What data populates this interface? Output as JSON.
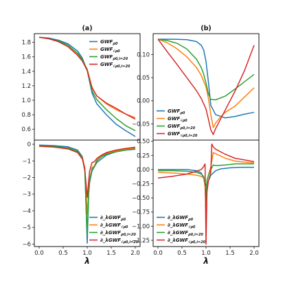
{
  "colors": {
    "blue": "#1f77b4",
    "orange": "#ff7f0e",
    "green": "#2ca02c",
    "red": "#d62728"
  },
  "chart_data": [
    {
      "type": "line",
      "panel": "top-left",
      "title": "(a)",
      "xlim": [
        -0.1,
        2.1
      ],
      "ylim": [
        0.45,
        1.92
      ],
      "yticks": [
        "0.6",
        "0.8",
        "1.0",
        "1.2",
        "1.4",
        "1.6",
        "1.8"
      ],
      "ytick_values": [
        0.6,
        0.8,
        1.0,
        1.2,
        1.4,
        1.6,
        1.8
      ],
      "legend": "top-right",
      "series": [
        {
          "name": "GWF_{ρ_0}",
          "color": "blue",
          "x": [
            0,
            0.2,
            0.4,
            0.6,
            0.8,
            0.9,
            1.0,
            1.1,
            1.2,
            1.4,
            1.6,
            1.8,
            2.0
          ],
          "y": [
            1.87,
            1.86,
            1.83,
            1.78,
            1.68,
            1.58,
            1.41,
            1.1,
            0.95,
            0.8,
            0.67,
            0.58,
            0.5
          ]
        },
        {
          "name": "GWF_{√ρ_0}",
          "color": "orange",
          "x": [
            0,
            0.2,
            0.4,
            0.6,
            0.8,
            0.9,
            1.0,
            1.1,
            1.2,
            1.4,
            1.6,
            1.8,
            2.0
          ],
          "y": [
            1.87,
            1.85,
            1.81,
            1.74,
            1.63,
            1.55,
            1.43,
            1.18,
            1.06,
            0.95,
            0.87,
            0.81,
            0.76
          ]
        },
        {
          "name": "GWF_{ρ_{0,i=20}}",
          "color": "green",
          "x": [
            0,
            0.2,
            0.4,
            0.6,
            0.8,
            0.9,
            1.0,
            1.1,
            1.2,
            1.4,
            1.6,
            1.8,
            2.0
          ],
          "y": [
            1.87,
            1.85,
            1.82,
            1.76,
            1.65,
            1.56,
            1.42,
            1.13,
            1.01,
            0.87,
            0.75,
            0.65,
            0.58
          ]
        },
        {
          "name": "GWF_{√ρ_{0,i=20}}",
          "color": "red",
          "x": [
            0,
            0.2,
            0.4,
            0.6,
            0.8,
            0.9,
            1.0,
            1.1,
            1.2,
            1.4,
            1.6,
            1.8,
            2.0
          ],
          "y": [
            1.87,
            1.85,
            1.81,
            1.74,
            1.62,
            1.54,
            1.41,
            1.17,
            1.06,
            0.96,
            0.89,
            0.81,
            0.74
          ]
        }
      ]
    },
    {
      "type": "line",
      "panel": "top-right",
      "title": "(b)",
      "xlim": [
        -0.1,
        2.1
      ],
      "ylim": [
        -0.085,
        0.145
      ],
      "yticks": [
        "−0.05",
        "0.00",
        "0.05",
        "0.10"
      ],
      "ytick_values": [
        -0.05,
        0.0,
        0.05,
        0.1
      ],
      "legend": "bottom-left",
      "series": [
        {
          "name": "GWF_{ρ_0}",
          "color": "blue",
          "x": [
            0,
            0.3,
            0.6,
            0.8,
            0.9,
            0.95,
            1.0,
            1.05,
            1.1,
            1.2,
            1.4,
            1.6,
            1.8,
            2.0
          ],
          "y": [
            0.133,
            0.133,
            0.132,
            0.128,
            0.12,
            0.11,
            0.085,
            0.04,
            -0.01,
            -0.03,
            -0.037,
            -0.034,
            -0.029,
            -0.025
          ]
        },
        {
          "name": "GWF_{√ρ_0}",
          "color": "orange",
          "x": [
            0,
            0.2,
            0.4,
            0.6,
            0.8,
            0.9,
            1.0,
            1.05,
            1.1,
            1.15,
            1.2,
            1.3,
            1.4,
            1.6,
            1.8,
            2.0
          ],
          "y": [
            0.133,
            0.125,
            0.112,
            0.095,
            0.072,
            0.055,
            0.03,
            0.005,
            -0.03,
            -0.058,
            -0.048,
            -0.035,
            -0.025,
            -0.012,
            0.008,
            0.028
          ]
        },
        {
          "name": "GWF_{ρ_{0,i=20}}",
          "color": "green",
          "x": [
            0,
            0.2,
            0.4,
            0.6,
            0.8,
            0.9,
            0.95,
            1.0,
            1.05,
            1.1,
            1.2,
            1.4,
            1.6,
            1.8,
            2.0
          ],
          "y": [
            0.133,
            0.13,
            0.124,
            0.112,
            0.09,
            0.072,
            0.058,
            0.038,
            0.015,
            0.003,
            0.002,
            0.01,
            0.025,
            0.041,
            0.057
          ]
        },
        {
          "name": "GWF_{√ρ_{0,i=20}}",
          "color": "red",
          "x": [
            0,
            0.2,
            0.4,
            0.6,
            0.8,
            0.9,
            1.0,
            1.05,
            1.1,
            1.15,
            1.2,
            1.4,
            1.6,
            1.8,
            2.0
          ],
          "y": [
            0.133,
            0.105,
            0.078,
            0.05,
            0.022,
            0.005,
            -0.018,
            -0.04,
            -0.063,
            -0.073,
            -0.06,
            -0.02,
            0.02,
            0.065,
            0.12
          ]
        }
      ]
    },
    {
      "type": "line",
      "panel": "bottom-left",
      "xlabel": "λ",
      "xlim": [
        -0.1,
        2.1
      ],
      "ylim": [
        -6.15,
        0.25
      ],
      "xticks": [
        "0.0",
        "0.5",
        "1.0",
        "1.5",
        "2.0"
      ],
      "xtick_values": [
        0,
        0.5,
        1.0,
        1.5,
        2.0
      ],
      "yticks": [
        "−6",
        "−5",
        "−4",
        "−3",
        "−2",
        "−1",
        "0"
      ],
      "ytick_values": [
        -6,
        -5,
        -4,
        -3,
        -2,
        -1,
        0
      ],
      "legend": "bottom-right",
      "series": [
        {
          "name": "∂_λGWF_{ρ_0}",
          "color": "blue",
          "x": [
            0,
            0.3,
            0.6,
            0.8,
            0.9,
            0.95,
            1.0,
            1.03,
            1.05,
            1.1,
            1.2,
            1.4,
            1.6,
            1.8,
            2.0
          ],
          "y": [
            -0.05,
            -0.08,
            -0.15,
            -0.35,
            -0.75,
            -1.5,
            -5.95,
            -3.0,
            -2.3,
            -1.6,
            -1.1,
            -0.65,
            -0.45,
            -0.35,
            -0.3
          ]
        },
        {
          "name": "∂_λGWF_{√ρ_0}",
          "color": "orange",
          "x": [
            0,
            0.3,
            0.6,
            0.8,
            0.9,
            0.95,
            1.0,
            1.03,
            1.05,
            1.1,
            1.15,
            1.2,
            1.3,
            1.4,
            1.6,
            1.8,
            2.0
          ],
          "y": [
            -0.1,
            -0.15,
            -0.25,
            -0.45,
            -0.8,
            -1.4,
            -4.2,
            -2.8,
            -2.1,
            -1.4,
            -1.3,
            -0.95,
            -0.7,
            -0.55,
            -0.4,
            -0.3,
            -0.22
          ]
        },
        {
          "name": "∂_λGWF_{ρ_{0,i=20}}",
          "color": "green",
          "x": [
            0,
            0.3,
            0.6,
            0.8,
            0.9,
            0.95,
            1.0,
            1.03,
            1.05,
            1.1,
            1.15,
            1.2,
            1.3,
            1.4,
            1.6,
            1.8,
            2.0
          ],
          "y": [
            -0.08,
            -0.12,
            -0.22,
            -0.42,
            -0.85,
            -1.6,
            -5.5,
            -3.0,
            -2.2,
            -1.5,
            -1.35,
            -1.0,
            -0.75,
            -0.6,
            -0.45,
            -0.35,
            -0.28
          ]
        },
        {
          "name": "∂_λGWF_{√ρ_{0,i=20}}",
          "color": "red",
          "x": [
            0,
            0.3,
            0.6,
            0.8,
            0.9,
            0.95,
            1.0,
            1.03,
            1.05,
            1.1,
            1.15,
            1.2,
            1.3,
            1.4,
            1.6,
            1.8,
            2.0
          ],
          "y": [
            -0.12,
            -0.17,
            -0.28,
            -0.5,
            -0.9,
            -1.5,
            -3.2,
            -2.2,
            -1.6,
            -1.1,
            -1.05,
            -0.85,
            -0.65,
            -0.5,
            -0.35,
            -0.25,
            -0.18
          ]
        }
      ]
    },
    {
      "type": "line",
      "panel": "bottom-right",
      "xlabel": "λ",
      "xlim": [
        -0.1,
        2.1
      ],
      "ylim": [
        -1.36,
        0.52
      ],
      "xticks": [
        "0.0",
        "0.5",
        "1.0",
        "1.5",
        "2.0"
      ],
      "xtick_values": [
        0,
        0.5,
        1.0,
        1.5,
        2.0
      ],
      "yticks": [
        "−1.25",
        "−1.00",
        "−0.75",
        "−0.50",
        "−0.25",
        "0.00",
        "0.25",
        "0.50"
      ],
      "ytick_values": [
        -1.25,
        -1.0,
        -0.75,
        -0.5,
        -0.25,
        0.0,
        0.25,
        0.5
      ],
      "legend": "bottom-left",
      "series": [
        {
          "name": "∂_λGWF_{ρ_0}",
          "color": "blue",
          "x": [
            0,
            0.3,
            0.6,
            0.8,
            0.9,
            0.95,
            1.0,
            1.05,
            1.1,
            1.2,
            1.3,
            1.5,
            1.7,
            2.0
          ],
          "y": [
            0.0,
            0.0,
            0.0,
            -0.02,
            -0.06,
            -0.15,
            -0.28,
            -0.2,
            -0.1,
            -0.02,
            0.01,
            0.03,
            0.04,
            0.04
          ]
        },
        {
          "name": "∂_λGWF_{√ρ_0}",
          "color": "orange",
          "x": [
            0,
            0.3,
            0.6,
            0.8,
            0.9,
            0.95,
            0.98,
            1.0,
            1.02,
            1.05,
            1.1,
            1.15,
            1.2,
            1.4,
            1.6,
            1.8,
            2.0
          ],
          "y": [
            -0.05,
            -0.06,
            -0.08,
            -0.1,
            -0.12,
            -0.15,
            -0.3,
            -0.75,
            -0.2,
            -0.1,
            0.05,
            0.3,
            0.28,
            0.2,
            0.15,
            0.13,
            0.12
          ]
        },
        {
          "name": "∂_λGWF_{ρ_{0,i=20}}",
          "color": "green",
          "x": [
            0,
            0.3,
            0.6,
            0.8,
            0.9,
            0.95,
            0.98,
            1.0,
            1.02,
            1.05,
            1.1,
            1.15,
            1.2,
            1.4,
            1.6,
            1.8,
            2.0
          ],
          "y": [
            -0.02,
            -0.02,
            -0.03,
            -0.05,
            -0.08,
            -0.12,
            -0.25,
            -0.55,
            -0.2,
            -0.1,
            0.0,
            0.08,
            0.07,
            0.08,
            0.1,
            0.1,
            0.1
          ]
        },
        {
          "name": "∂_λGWF_{√ρ_{0,i=20}}",
          "color": "red",
          "x": [
            0,
            0.3,
            0.6,
            0.8,
            0.9,
            0.95,
            0.98,
            1.0,
            1.02,
            1.05,
            1.1,
            1.12,
            1.15,
            1.2,
            1.4,
            1.6,
            1.8,
            2.0
          ],
          "y": [
            -0.15,
            -0.12,
            -0.08,
            -0.03,
            0.0,
            0.05,
            0.1,
            -1.32,
            -0.4,
            -0.2,
            -0.05,
            0.45,
            0.4,
            0.36,
            0.27,
            0.2,
            0.17,
            0.14
          ]
        }
      ]
    }
  ]
}
